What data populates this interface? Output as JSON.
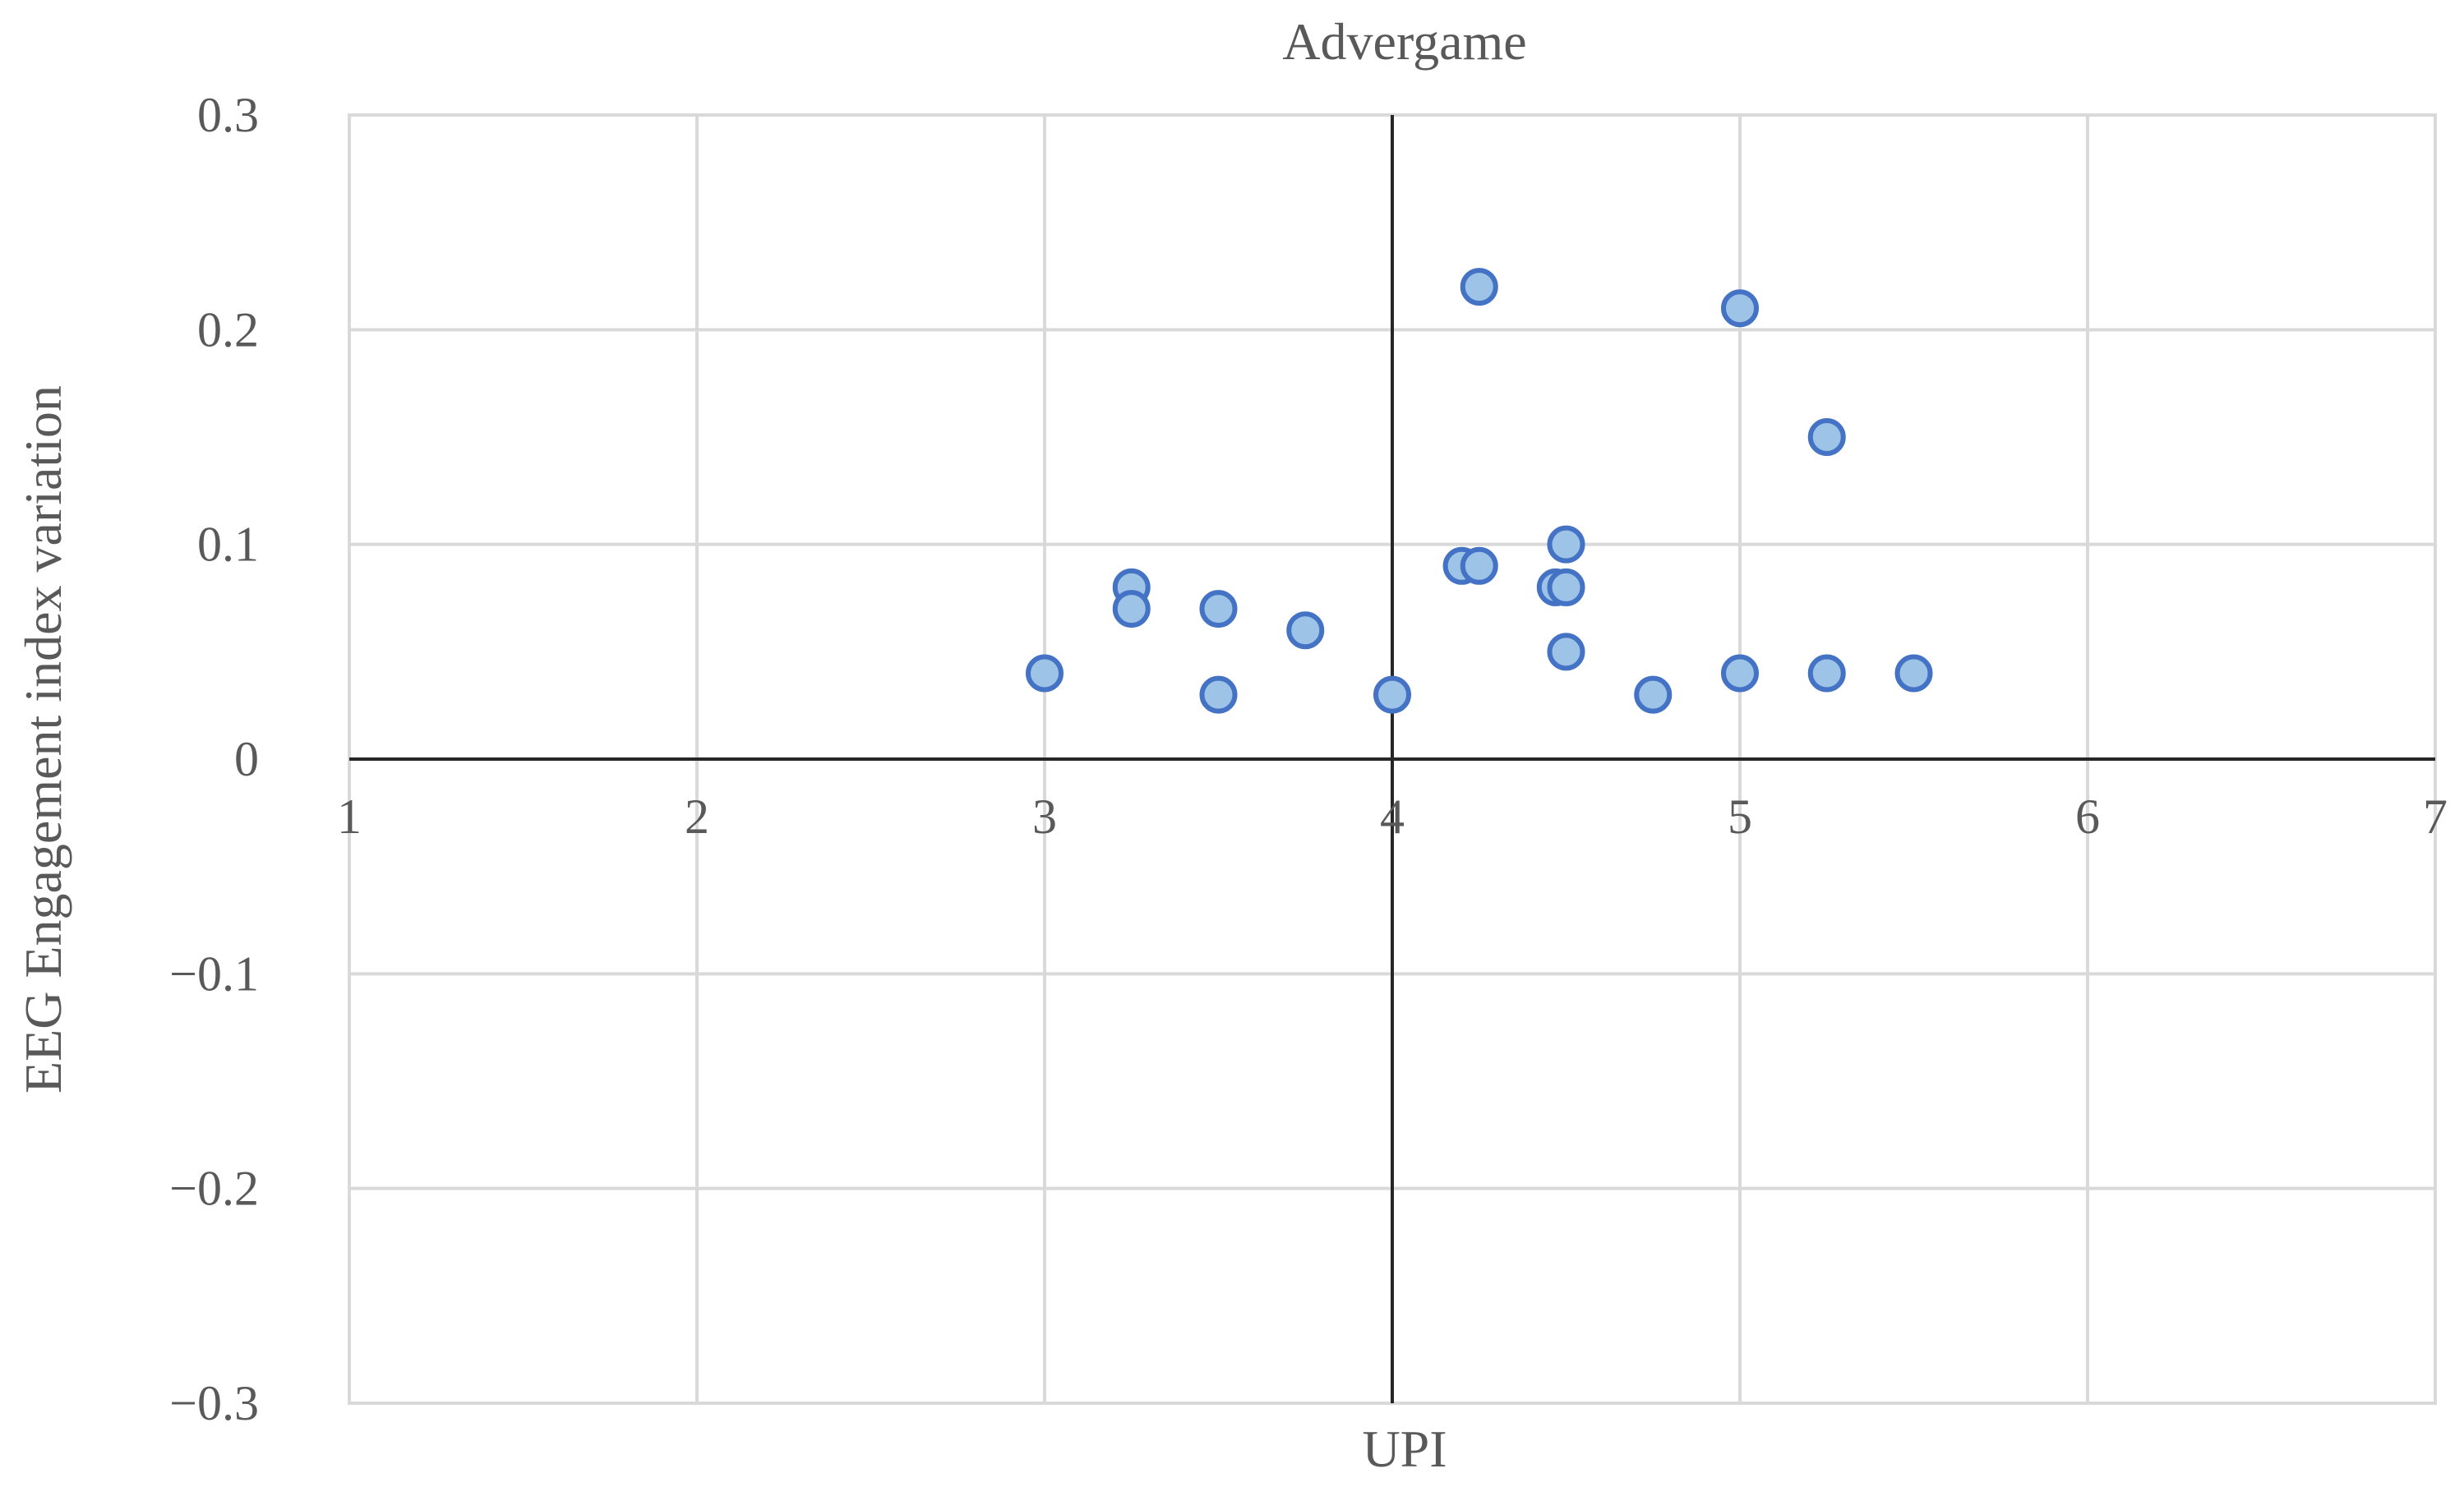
{
  "chart_data": {
    "type": "scatter",
    "title": "Advergame",
    "xlabel": "UPI",
    "ylabel": "EEG Engagement index variation",
    "xlim": [
      1,
      7
    ],
    "ylim": [
      -0.3,
      0.3
    ],
    "x_ticks": [
      1,
      2,
      3,
      4,
      5,
      6,
      7
    ],
    "x_tick_labels": [
      "1",
      "2",
      "3",
      "4",
      "5",
      "6",
      "7"
    ],
    "y_ticks": [
      0.3,
      0.2,
      0.1,
      0,
      -0.1,
      -0.2,
      -0.3
    ],
    "y_tick_labels": [
      "0.3",
      "0.2",
      "0.1",
      "0",
      "−0.1",
      "−0.2",
      "−0.3"
    ],
    "x_axis_crosses_y_at": 0,
    "y_axis_crosses_x_at": 4,
    "grid": true,
    "legend": "none",
    "colors": {
      "marker_fill": "#9dc3e6",
      "marker_edge": "#4472c4"
    },
    "series": [
      {
        "points": [
          {
            "x": 3.0,
            "y": 0.04
          },
          {
            "x": 3.25,
            "y": 0.08
          },
          {
            "x": 3.25,
            "y": 0.07
          },
          {
            "x": 3.5,
            "y": 0.07
          },
          {
            "x": 3.5,
            "y": 0.03
          },
          {
            "x": 3.75,
            "y": 0.06
          },
          {
            "x": 4.0,
            "y": 0.03
          },
          {
            "x": 4.2,
            "y": 0.09
          },
          {
            "x": 4.25,
            "y": 0.09
          },
          {
            "x": 4.25,
            "y": 0.22
          },
          {
            "x": 4.47,
            "y": 0.08
          },
          {
            "x": 4.5,
            "y": 0.08
          },
          {
            "x": 4.5,
            "y": 0.1
          },
          {
            "x": 4.5,
            "y": 0.05
          },
          {
            "x": 4.75,
            "y": 0.03
          },
          {
            "x": 5.0,
            "y": 0.21
          },
          {
            "x": 5.0,
            "y": 0.04
          },
          {
            "x": 5.25,
            "y": 0.15
          },
          {
            "x": 5.25,
            "y": 0.04
          },
          {
            "x": 5.5,
            "y": 0.04
          }
        ]
      }
    ]
  }
}
